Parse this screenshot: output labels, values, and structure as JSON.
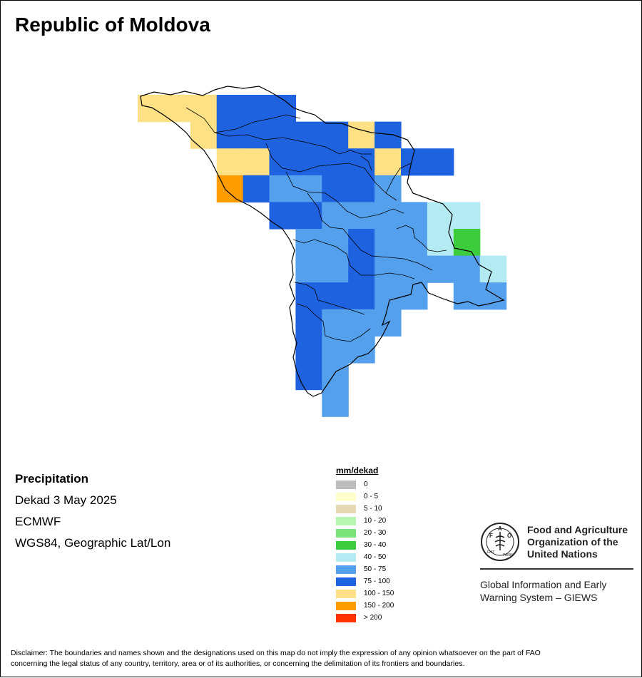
{
  "title": "Republic of Moldova",
  "info": {
    "variable": "Precipitation",
    "period": "Dekad 3 May 2025",
    "source": "ECMWF",
    "projection": "WGS84, Geographic Lat/Lon"
  },
  "legend": {
    "title": "mm/dekad",
    "items": [
      {
        "label": "0",
        "color": "#bdbdbd"
      },
      {
        "label": "0 - 5",
        "color": "#ffffcc"
      },
      {
        "label": "5 - 10",
        "color": "#e8d9b5"
      },
      {
        "label": "10 - 20",
        "color": "#b7f5b3"
      },
      {
        "label": "20 - 30",
        "color": "#7ce37a"
      },
      {
        "label": "30 - 40",
        "color": "#3ccc3c"
      },
      {
        "label": "40 - 50",
        "color": "#b4ebf3"
      },
      {
        "label": "50 - 75",
        "color": "#55a0ec"
      },
      {
        "label": "75 - 100",
        "color": "#1e62e0"
      },
      {
        "label": "100 - 150",
        "color": "#fde184"
      },
      {
        "label": "150 - 200",
        "color": "#ff9d00"
      },
      {
        "label": "> 200",
        "color": "#ff3300"
      }
    ]
  },
  "fao": {
    "line1": "Food and Agriculture",
    "line2": "Organization of the",
    "line3": "United Nations",
    "giews1": "Global Information and Early",
    "giews2": "Warning System – GIEWS",
    "logo_text": "FAO",
    "logo_motto": "FIAT PANIS"
  },
  "disclaimer": {
    "line1": "Disclaimer: The boundaries and names shown and the designations used on this map do not imply the expression of any opinion whatsoever on the part of FAO",
    "line2": "concerning the legal status of any country, territory, area or of its authorities, or concerning the delimitation of its frontiers and boundaries."
  },
  "grid_cells": [
    [
      "100 - 150",
      "100 - 150",
      "100 - 150",
      "75 - 100",
      "75 - 100",
      "75 - 100",
      "",
      "",
      "",
      "",
      "",
      "",
      "",
      "",
      "",
      "",
      "",
      ""
    ],
    [
      "",
      "",
      "100 - 150",
      "75 - 100",
      "75 - 100",
      "75 - 100",
      "75 - 100",
      "75 - 100",
      "100 - 150",
      "75 - 100",
      "",
      "",
      "",
      "",
      "",
      "",
      "",
      ""
    ],
    [
      "",
      "",
      "",
      "100 - 150",
      "100 - 150",
      "75 - 100",
      "75 - 100",
      "75 - 100",
      "75 - 100",
      "100 - 150",
      "75 - 100",
      "75 - 100",
      "",
      "",
      "",
      "",
      "",
      ""
    ],
    [
      "",
      "",
      "",
      "150 - 200",
      "75 - 100",
      "50 - 75",
      "50 - 75",
      "75 - 100",
      "75 - 100",
      "50 - 75",
      "",
      "",
      "",
      "",
      "",
      "",
      "",
      ""
    ],
    [
      "",
      "",
      "",
      "",
      "",
      "75 - 100",
      "75 - 100",
      "50 - 75",
      "50 - 75",
      "50 - 75",
      "50 - 75",
      "40 - 50",
      "40 - 50",
      "",
      "",
      "",
      "",
      ""
    ],
    [
      "",
      "",
      "",
      "",
      "",
      "",
      "50 - 75",
      "50 - 75",
      "75 - 100",
      "50 - 75",
      "50 - 75",
      "40 - 50",
      "30 - 40",
      "",
      "",
      "",
      "",
      ""
    ],
    [
      "",
      "",
      "",
      "",
      "",
      "",
      "50 - 75",
      "50 - 75",
      "75 - 100",
      "50 - 75",
      "50 - 75",
      "50 - 75",
      "50 - 75",
      "40 - 50",
      "",
      "",
      "",
      ""
    ],
    [
      "",
      "",
      "",
      "",
      "",
      "",
      "75 - 100",
      "75 - 100",
      "75 - 100",
      "50 - 75",
      "50 - 75",
      "",
      "50 - 75",
      "50 - 75",
      "",
      "",
      "",
      ""
    ],
    [
      "",
      "",
      "",
      "",
      "",
      "",
      "75 - 100",
      "50 - 75",
      "50 - 75",
      "50 - 75",
      "",
      "",
      "",
      "",
      "",
      "",
      "",
      ""
    ],
    [
      "",
      "",
      "",
      "",
      "",
      "",
      "75 - 100",
      "50 - 75",
      "50 - 75",
      "",
      "",
      "",
      "",
      "",
      "",
      "",
      "",
      ""
    ],
    [
      "",
      "",
      "",
      "",
      "",
      "",
      "75 - 100",
      "50 - 75",
      "",
      "",
      "",
      "",
      "",
      "",
      "",
      "",
      "",
      ""
    ],
    [
      "",
      "",
      "",
      "",
      "",
      "",
      "",
      "50 - 75",
      "",
      "",
      "",
      "",
      "",
      "",
      "",
      "",
      "",
      ""
    ]
  ]
}
